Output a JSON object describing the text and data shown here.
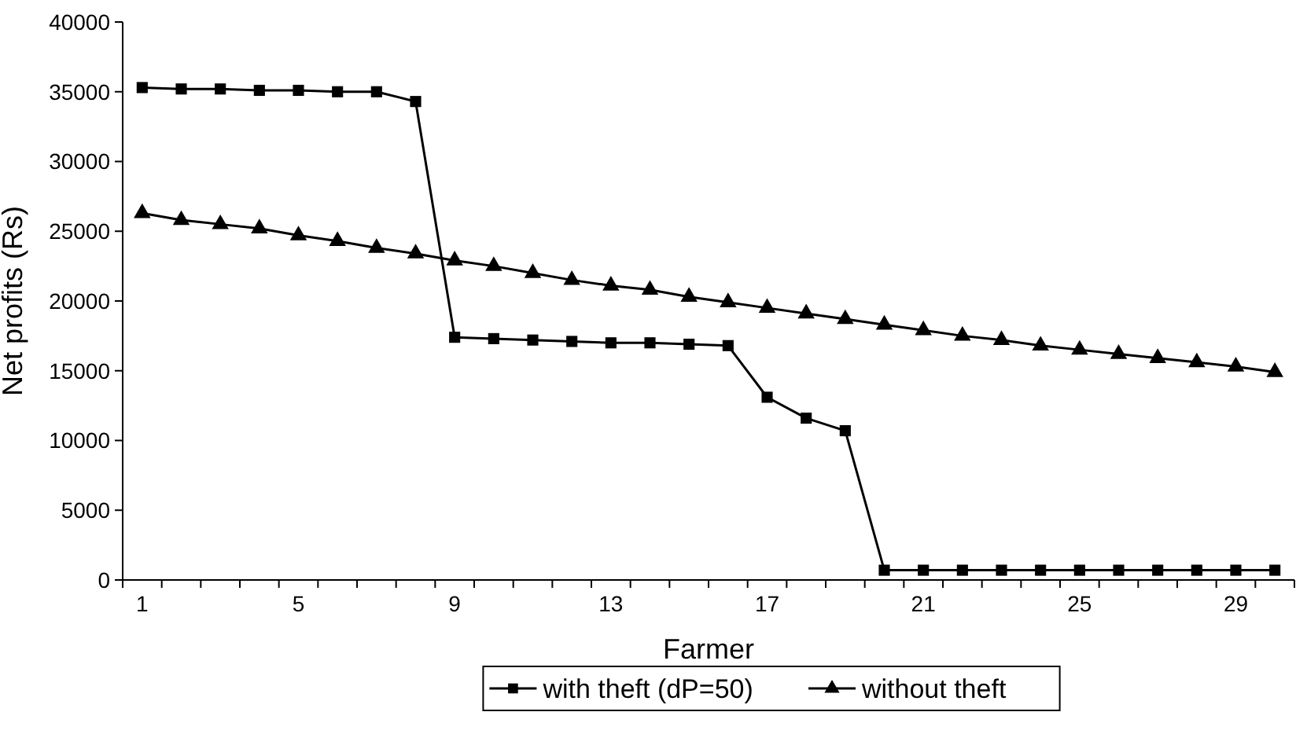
{
  "chart_data": {
    "type": "line",
    "xlabel": "Farmer",
    "ylabel": "Net profits (Rs)",
    "categories": [
      "1",
      null,
      null,
      null,
      "5",
      null,
      null,
      null,
      "9",
      null,
      null,
      null,
      "13",
      null,
      null,
      null,
      "17",
      null,
      null,
      null,
      "21",
      null,
      null,
      null,
      "25",
      null,
      null,
      null,
      "29",
      null
    ],
    "series": [
      {
        "name": "with theft (dP=50)",
        "color": "#000000",
        "marker": "square",
        "values": [
          35300,
          35200,
          35200,
          35100,
          35100,
          35000,
          35000,
          34300,
          17400,
          17300,
          17200,
          17100,
          17000,
          17000,
          16900,
          16800,
          13100,
          11600,
          10700,
          700,
          700,
          700,
          700,
          700,
          700,
          700,
          700,
          700,
          700,
          700
        ]
      },
      {
        "name": "without theft",
        "color": "#000000",
        "marker": "triangle",
        "values": [
          26300,
          25800,
          25500,
          25200,
          24700,
          24300,
          23800,
          23400,
          22900,
          22500,
          22000,
          21500,
          21100,
          20800,
          20300,
          19900,
          19500,
          19100,
          18700,
          18300,
          17900,
          17500,
          17200,
          16800,
          16500,
          16200,
          15900,
          15600,
          15300,
          14900
        ]
      }
    ],
    "ylim": [
      0,
      40000
    ],
    "yticks": [
      0,
      5000,
      10000,
      15000,
      20000,
      25000,
      30000,
      35000,
      40000
    ],
    "legend": "bottom",
    "grid": false,
    "line_style": "solid"
  }
}
